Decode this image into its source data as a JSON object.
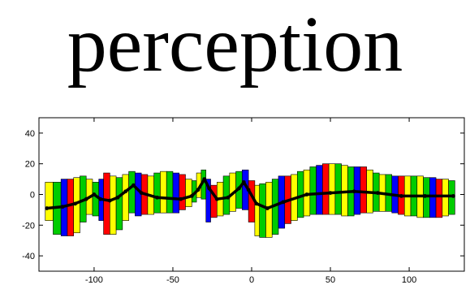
{
  "word": "perception",
  "chart_data": {
    "type": "line",
    "title": "",
    "xlabel": "",
    "ylabel": "",
    "xlim": [
      -135,
      135
    ],
    "ylim": [
      -50,
      50
    ],
    "xticks": [
      -100,
      -50,
      0,
      50,
      100
    ],
    "yticks": [
      -40,
      -20,
      0,
      20,
      40
    ],
    "grid": false,
    "legend": "none",
    "colors": {
      "axes": "#000000",
      "line": "#000000",
      "stripe_cycle": [
        "#ffff00",
        "#00cc00",
        "#0000ff",
        "#ff0000",
        "#ffff00",
        "#00cc00"
      ],
      "outline": "#000000"
    },
    "series": [
      {
        "values": [
          {
            "x": -130,
            "y": -9
          },
          {
            "x": -120,
            "y": -8
          },
          {
            "x": -112,
            "y": -6
          },
          {
            "x": -105,
            "y": -3
          },
          {
            "x": -100,
            "y": 0
          },
          {
            "x": -96,
            "y": -3
          },
          {
            "x": -90,
            "y": -4
          },
          {
            "x": -85,
            "y": -2
          },
          {
            "x": -80,
            "y": 2
          },
          {
            "x": -75,
            "y": 6
          },
          {
            "x": -70,
            "y": 1
          },
          {
            "x": -60,
            "y": -2
          },
          {
            "x": -45,
            "y": -3
          },
          {
            "x": -38,
            "y": -1
          },
          {
            "x": -34,
            "y": 3
          },
          {
            "x": -30,
            "y": 10
          },
          {
            "x": -27,
            "y": 4
          },
          {
            "x": -22,
            "y": -3
          },
          {
            "x": -15,
            "y": -2
          },
          {
            "x": -8,
            "y": 4
          },
          {
            "x": -5,
            "y": 8
          },
          {
            "x": -2,
            "y": 3
          },
          {
            "x": 3,
            "y": -6
          },
          {
            "x": 10,
            "y": -9
          },
          {
            "x": 20,
            "y": -5
          },
          {
            "x": 35,
            "y": 0
          },
          {
            "x": 50,
            "y": 1
          },
          {
            "x": 65,
            "y": 2
          },
          {
            "x": 80,
            "y": 1
          },
          {
            "x": 95,
            "y": -1
          },
          {
            "x": 110,
            "y": -1
          },
          {
            "x": 128,
            "y": -1
          }
        ]
      }
    ],
    "stripes": [
      {
        "x0": -131,
        "x1": -126,
        "lo": -17,
        "hi": 8
      },
      {
        "x0": -126,
        "x1": -121,
        "lo": -26,
        "hi": 8
      },
      {
        "x0": -121,
        "x1": -117,
        "lo": -27,
        "hi": 10
      },
      {
        "x0": -117,
        "x1": -113,
        "lo": -27,
        "hi": 10
      },
      {
        "x0": -113,
        "x1": -109,
        "lo": -25,
        "hi": 11
      },
      {
        "x0": -109,
        "x1": -105,
        "lo": -18,
        "hi": 12
      },
      {
        "x0": -105,
        "x1": -101,
        "lo": -13,
        "hi": 10
      },
      {
        "x0": -101,
        "x1": -97,
        "lo": -14,
        "hi": 8
      },
      {
        "x0": -97,
        "x1": -94,
        "lo": -17,
        "hi": 10
      },
      {
        "x0": -94,
        "x1": -90,
        "lo": -26,
        "hi": 14
      },
      {
        "x0": -90,
        "x1": -86,
        "lo": -26,
        "hi": 12
      },
      {
        "x0": -86,
        "x1": -82,
        "lo": -23,
        "hi": 11
      },
      {
        "x0": -82,
        "x1": -78,
        "lo": -17,
        "hi": 13
      },
      {
        "x0": -78,
        "x1": -74,
        "lo": -12,
        "hi": 15
      },
      {
        "x0": -74,
        "x1": -70,
        "lo": -14,
        "hi": 14
      },
      {
        "x0": -70,
        "x1": -66,
        "lo": -13,
        "hi": 13
      },
      {
        "x0": -66,
        "x1": -62,
        "lo": -13,
        "hi": 12
      },
      {
        "x0": -62,
        "x1": -58,
        "lo": -12,
        "hi": 14
      },
      {
        "x0": -58,
        "x1": -54,
        "lo": -12,
        "hi": 15
      },
      {
        "x0": -54,
        "x1": -50,
        "lo": -12,
        "hi": 15
      },
      {
        "x0": -50,
        "x1": -46,
        "lo": -12,
        "hi": 14
      },
      {
        "x0": -46,
        "x1": -42,
        "lo": -10,
        "hi": 13
      },
      {
        "x0": -42,
        "x1": -38,
        "lo": -8,
        "hi": 10
      },
      {
        "x0": -38,
        "x1": -35,
        "lo": -5,
        "hi": 9
      },
      {
        "x0": -35,
        "x1": -32,
        "lo": -2,
        "hi": 14
      },
      {
        "x0": -32,
        "x1": -29,
        "lo": -3,
        "hi": 16
      },
      {
        "x0": -29,
        "x1": -26,
        "lo": -18,
        "hi": 10
      },
      {
        "x0": -26,
        "x1": -22,
        "lo": -15,
        "hi": 6
      },
      {
        "x0": -22,
        "x1": -18,
        "lo": -14,
        "hi": 8
      },
      {
        "x0": -18,
        "x1": -14,
        "lo": -13,
        "hi": 12
      },
      {
        "x0": -14,
        "x1": -10,
        "lo": -11,
        "hi": 14
      },
      {
        "x0": -10,
        "x1": -6,
        "lo": -9,
        "hi": 15
      },
      {
        "x0": -6,
        "x1": -2,
        "lo": -10,
        "hi": 16
      },
      {
        "x0": -2,
        "x1": 2,
        "lo": -18,
        "hi": 9
      },
      {
        "x0": 2,
        "x1": 5,
        "lo": -27,
        "hi": 6
      },
      {
        "x0": 5,
        "x1": 9,
        "lo": -28,
        "hi": 7
      },
      {
        "x0": 9,
        "x1": 13,
        "lo": -28,
        "hi": 8
      },
      {
        "x0": 13,
        "x1": 17,
        "lo": -26,
        "hi": 10
      },
      {
        "x0": 17,
        "x1": 21,
        "lo": -22,
        "hi": 12
      },
      {
        "x0": 21,
        "x1": 25,
        "lo": -19,
        "hi": 12
      },
      {
        "x0": 25,
        "x1": 29,
        "lo": -17,
        "hi": 13
      },
      {
        "x0": 29,
        "x1": 33,
        "lo": -15,
        "hi": 15
      },
      {
        "x0": 33,
        "x1": 37,
        "lo": -14,
        "hi": 16
      },
      {
        "x0": 37,
        "x1": 41,
        "lo": -13,
        "hi": 18
      },
      {
        "x0": 41,
        "x1": 45,
        "lo": -13,
        "hi": 19
      },
      {
        "x0": 45,
        "x1": 49,
        "lo": -13,
        "hi": 20
      },
      {
        "x0": 49,
        "x1": 53,
        "lo": -13,
        "hi": 20
      },
      {
        "x0": 53,
        "x1": 57,
        "lo": -13,
        "hi": 20
      },
      {
        "x0": 57,
        "x1": 61,
        "lo": -14,
        "hi": 19
      },
      {
        "x0": 61,
        "x1": 65,
        "lo": -14,
        "hi": 18
      },
      {
        "x0": 65,
        "x1": 69,
        "lo": -13,
        "hi": 18
      },
      {
        "x0": 69,
        "x1": 73,
        "lo": -12,
        "hi": 18
      },
      {
        "x0": 73,
        "x1": 77,
        "lo": -12,
        "hi": 16
      },
      {
        "x0": 77,
        "x1": 81,
        "lo": -11,
        "hi": 14
      },
      {
        "x0": 81,
        "x1": 85,
        "lo": -11,
        "hi": 13
      },
      {
        "x0": 85,
        "x1": 89,
        "lo": -11,
        "hi": 13
      },
      {
        "x0": 89,
        "x1": 93,
        "lo": -12,
        "hi": 12
      },
      {
        "x0": 93,
        "x1": 97,
        "lo": -13,
        "hi": 12
      },
      {
        "x0": 97,
        "x1": 101,
        "lo": -14,
        "hi": 12
      },
      {
        "x0": 101,
        "x1": 105,
        "lo": -14,
        "hi": 12
      },
      {
        "x0": 105,
        "x1": 109,
        "lo": -15,
        "hi": 12
      },
      {
        "x0": 109,
        "x1": 113,
        "lo": -15,
        "hi": 11
      },
      {
        "x0": 113,
        "x1": 117,
        "lo": -15,
        "hi": 11
      },
      {
        "x0": 117,
        "x1": 121,
        "lo": -15,
        "hi": 10
      },
      {
        "x0": 121,
        "x1": 125,
        "lo": -14,
        "hi": 10
      },
      {
        "x0": 125,
        "x1": 129,
        "lo": -13,
        "hi": 9
      }
    ]
  }
}
